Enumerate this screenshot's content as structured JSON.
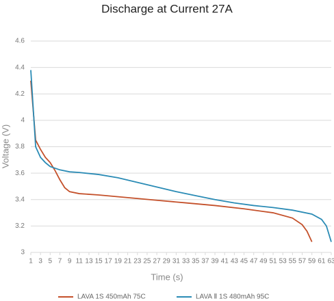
{
  "chart_data": {
    "type": "line",
    "title": "Discharge at Current 27A",
    "xlabel": "Time (s)",
    "ylabel": "Voltage (V)",
    "xlim": [
      1,
      63
    ],
    "xticks": [
      1,
      3,
      5,
      7,
      9,
      11,
      13,
      15,
      17,
      19,
      21,
      23,
      25,
      27,
      29,
      31,
      33,
      35,
      37,
      39,
      41,
      43,
      45,
      47,
      49,
      51,
      53,
      55,
      57,
      59,
      61,
      63
    ],
    "ylim": [
      3,
      4.6
    ],
    "yticks": [
      3,
      3.2,
      3.4,
      3.6,
      3.8,
      4,
      4.2,
      4.4,
      4.6
    ],
    "grid": true,
    "legend": "bottom",
    "series": [
      {
        "name": "LAVA 1S 450mAh 75C",
        "color": "#c4502a",
        "x": [
          1,
          2,
          3,
          4,
          5,
          6,
          7,
          8,
          9,
          11,
          15,
          21,
          27,
          33,
          39,
          45,
          51,
          55,
          57,
          58,
          59
        ],
        "values": [
          4.3,
          3.85,
          3.78,
          3.72,
          3.68,
          3.62,
          3.55,
          3.49,
          3.46,
          3.445,
          3.435,
          3.415,
          3.395,
          3.375,
          3.355,
          3.33,
          3.3,
          3.26,
          3.21,
          3.16,
          3.08
        ]
      },
      {
        "name": "LAVA Ⅱ 1S 480mAh 95C",
        "color": "#2a8bb5",
        "x": [
          1,
          2,
          3,
          4,
          5,
          7,
          9,
          11,
          15,
          19,
          23,
          27,
          31,
          35,
          39,
          43,
          47,
          51,
          55,
          59,
          61,
          62,
          63
        ],
        "values": [
          4.38,
          3.8,
          3.72,
          3.68,
          3.65,
          3.625,
          3.61,
          3.605,
          3.59,
          3.565,
          3.53,
          3.495,
          3.46,
          3.43,
          3.4,
          3.375,
          3.355,
          3.34,
          3.32,
          3.29,
          3.25,
          3.2,
          3.08
        ]
      }
    ]
  }
}
